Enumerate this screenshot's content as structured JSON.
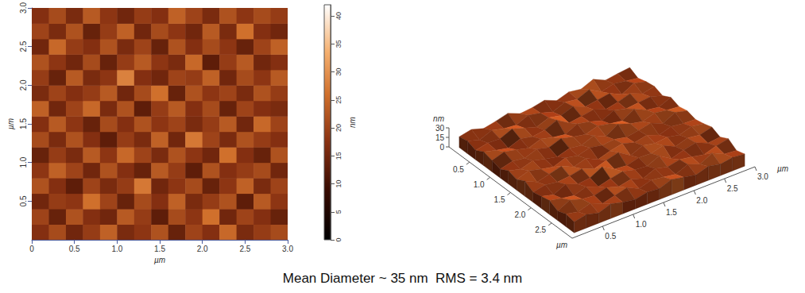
{
  "caption": "Mean Diameter ~ 35 nm  RMS = 3.4 nm",
  "chart_data": [
    {
      "type": "heatmap",
      "x_label": "µm",
      "y_label": "µm",
      "x": [
        0.1,
        0.3,
        0.5,
        0.7,
        0.9,
        1.1,
        1.3,
        1.5,
        1.7,
        1.9,
        2.1,
        2.3,
        2.5,
        2.7,
        2.9
      ],
      "y": [
        0.1,
        0.3,
        0.5,
        0.7,
        0.9,
        1.1,
        1.3,
        1.5,
        1.7,
        1.9,
        2.1,
        2.3,
        2.5,
        2.7,
        2.9
      ],
      "cells": [
        [
          17,
          21,
          15,
          19,
          24,
          16,
          18,
          22,
          14,
          20,
          17,
          25,
          16,
          19,
          21
        ],
        [
          20,
          14,
          22,
          17,
          15,
          23,
          19,
          13,
          21,
          18,
          26,
          15,
          20,
          17,
          14
        ],
        [
          15,
          19,
          18,
          26,
          20,
          14,
          21,
          17,
          24,
          16,
          19,
          22,
          13,
          23,
          18
        ],
        [
          22,
          17,
          13,
          20,
          16,
          19,
          27,
          15,
          18,
          21,
          14,
          18,
          24,
          16,
          20
        ],
        [
          18,
          24,
          20,
          15,
          22,
          17,
          14,
          23,
          19,
          13,
          22,
          17,
          19,
          21,
          15
        ],
        [
          14,
          19,
          16,
          23,
          18,
          25,
          20,
          16,
          22,
          18,
          15,
          26,
          17,
          14,
          22
        ],
        [
          21,
          16,
          22,
          17,
          13,
          19,
          16,
          24,
          15,
          27,
          20,
          16,
          22,
          19,
          17
        ],
        [
          17,
          23,
          18,
          14,
          21,
          17,
          22,
          18,
          20,
          16,
          19,
          23,
          15,
          25,
          20
        ],
        [
          24,
          15,
          20,
          25,
          16,
          22,
          13,
          19,
          23,
          17,
          21,
          14,
          20,
          17,
          16
        ],
        [
          16,
          20,
          17,
          19,
          23,
          15,
          21,
          26,
          14,
          22,
          18,
          20,
          16,
          22,
          19
        ],
        [
          19,
          14,
          23,
          16,
          18,
          28,
          17,
          15,
          20,
          19,
          24,
          15,
          21,
          18,
          23
        ],
        [
          22,
          18,
          15,
          21,
          14,
          19,
          23,
          18,
          16,
          25,
          13,
          19,
          23,
          15,
          17
        ],
        [
          15,
          25,
          19,
          17,
          22,
          16,
          20,
          14,
          22,
          17,
          21,
          18,
          14,
          20,
          24
        ],
        [
          20,
          16,
          22,
          14,
          19,
          24,
          15,
          21,
          18,
          15,
          23,
          16,
          26,
          17,
          15
        ],
        [
          17,
          21,
          16,
          23,
          18,
          15,
          19,
          17,
          24,
          20,
          16,
          22,
          18,
          21,
          19
        ]
      ],
      "xlim": [
        0,
        3
      ],
      "ylim": [
        0,
        3
      ],
      "xticks": [
        0,
        0.5,
        {
          "value": 1,
          "label": "1.0"
        },
        1.5,
        {
          "value": 2,
          "label": "2.0"
        },
        2.5,
        {
          "value": 3,
          "label": "3.0"
        }
      ],
      "yticks": [
        0.5,
        {
          "value": 1,
          "label": "1.0"
        },
        1.5,
        {
          "value": 2,
          "label": "2.0"
        },
        2.5,
        {
          "value": 3,
          "label": "3.0"
        }
      ],
      "color_label": "nm",
      "color_range": [
        0,
        42
      ],
      "color_ticks": [
        0,
        5,
        10,
        15,
        20,
        25,
        30,
        35,
        40
      ]
    },
    {
      "type": "surface",
      "x_label": "µm",
      "y_label": "µm",
      "z_label": "nm",
      "x": [
        0.1,
        0.3,
        0.5,
        0.7,
        0.9,
        1.1,
        1.3,
        1.5,
        1.7,
        1.9,
        2.1,
        2.3,
        2.5,
        2.7,
        2.9
      ],
      "y": [
        0.1,
        0.3,
        0.5,
        0.7,
        0.9,
        1.1,
        1.3,
        1.5,
        1.7,
        1.9,
        2.1,
        2.3,
        2.5,
        2.7,
        2.9
      ],
      "cells": [
        [
          17,
          21,
          15,
          19,
          24,
          16,
          18,
          22,
          14,
          20,
          17,
          25,
          16,
          19,
          21
        ],
        [
          20,
          14,
          22,
          17,
          15,
          23,
          19,
          13,
          21,
          18,
          26,
          15,
          20,
          17,
          14
        ],
        [
          15,
          19,
          18,
          26,
          20,
          14,
          21,
          17,
          24,
          16,
          19,
          22,
          13,
          23,
          18
        ],
        [
          22,
          17,
          13,
          20,
          16,
          19,
          27,
          15,
          18,
          21,
          14,
          18,
          24,
          16,
          20
        ],
        [
          18,
          24,
          20,
          15,
          22,
          17,
          14,
          23,
          19,
          13,
          22,
          17,
          19,
          21,
          15
        ],
        [
          14,
          19,
          16,
          23,
          18,
          25,
          20,
          16,
          22,
          18,
          15,
          26,
          17,
          14,
          22
        ],
        [
          21,
          16,
          22,
          17,
          13,
          19,
          16,
          24,
          15,
          27,
          20,
          16,
          22,
          19,
          17
        ],
        [
          17,
          23,
          18,
          14,
          21,
          17,
          22,
          18,
          20,
          16,
          19,
          23,
          15,
          25,
          20
        ],
        [
          24,
          15,
          20,
          25,
          16,
          22,
          13,
          19,
          23,
          17,
          21,
          14,
          20,
          17,
          16
        ],
        [
          16,
          20,
          17,
          19,
          23,
          15,
          21,
          26,
          14,
          22,
          18,
          20,
          16,
          22,
          19
        ],
        [
          19,
          14,
          23,
          16,
          18,
          28,
          17,
          15,
          20,
          19,
          24,
          15,
          21,
          18,
          23
        ],
        [
          22,
          18,
          15,
          21,
          14,
          19,
          23,
          18,
          16,
          25,
          13,
          19,
          23,
          15,
          17
        ],
        [
          15,
          25,
          19,
          17,
          22,
          16,
          20,
          14,
          22,
          17,
          21,
          18,
          14,
          20,
          24
        ],
        [
          20,
          16,
          22,
          14,
          19,
          24,
          15,
          21,
          18,
          15,
          23,
          16,
          26,
          17,
          15
        ],
        [
          17,
          21,
          16,
          23,
          18,
          15,
          19,
          17,
          24,
          20,
          16,
          22,
          18,
          21,
          19
        ]
      ],
      "xlim": [
        0,
        3
      ],
      "ylim": [
        0,
        3
      ],
      "zlim": [
        0,
        30
      ],
      "xticks": [
        0.5,
        {
          "value": 1,
          "label": "1.0"
        },
        1.5,
        {
          "value": 2,
          "label": "2.0"
        },
        2.5,
        {
          "value": 3,
          "label": "3.0"
        }
      ],
      "yticks": [
        0.5,
        {
          "value": 1,
          "label": "1.0"
        },
        1.5,
        {
          "value": 2,
          "label": "2.0"
        },
        2.5
      ],
      "zticks": [
        0,
        15,
        30
      ],
      "color_range": [
        0,
        42
      ]
    }
  ]
}
